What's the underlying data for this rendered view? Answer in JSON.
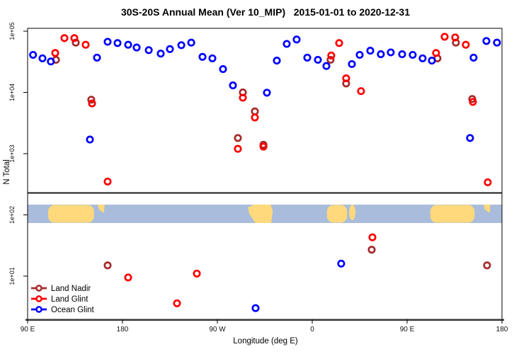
{
  "title": "30S-20S Annual Mean (Ver 10_MIP)   2015-01-01 to 2020-12-31",
  "chart_data": {
    "type": "scatter",
    "title": "30S-20S Annual Mean (Ver 10_MIP)   2015-01-01 to 2020-12-31",
    "xlabel": "Longitude (deg E)",
    "ylabel": "N Total",
    "grid": false,
    "legend_position": "bottom-left-inside",
    "x_axis": {
      "min": 90,
      "max": 540,
      "ticks": [
        {
          "lon": 90,
          "label": "90 E"
        },
        {
          "lon": 180,
          "label": "180"
        },
        {
          "lon": 270,
          "label": "90 W"
        },
        {
          "lon": 360,
          "label": "0"
        },
        {
          "lon": 450,
          "label": "90 E"
        },
        {
          "lon": 540,
          "label": "180"
        }
      ]
    },
    "y_axis": {
      "scale": "log",
      "ylim": [
        2,
        110000
      ],
      "ticks": [
        {
          "value": 100000,
          "label": "1e+05"
        },
        {
          "value": 10000,
          "label": "1e+04"
        },
        {
          "value": 1000,
          "label": "1e+03"
        },
        {
          "value": 100,
          "label": "1e+02"
        },
        {
          "value": 10,
          "label": "1e+01"
        }
      ]
    },
    "legend": [
      "Land Nadir",
      "Land Glint",
      "Ocean Glint"
    ],
    "series": [
      {
        "name": "Land Nadir",
        "color": "#a52a2a",
        "points": [
          {
            "lon": 116.9,
            "v": 34000
          },
          {
            "lon": 135.7,
            "v": 65000
          },
          {
            "lon": 150.4,
            "v": 7600
          },
          {
            "lon": 289.5,
            "v": 1800
          },
          {
            "lon": 294.2,
            "v": 10000
          },
          {
            "lon": 305.6,
            "v": 4900
          },
          {
            "lon": 313.7,
            "v": 1400
          },
          {
            "lon": 377.4,
            "v": 34000
          },
          {
            "lon": 392.2,
            "v": 14000
          },
          {
            "lon": 478.8,
            "v": 36000
          },
          {
            "lon": 496.3,
            "v": 65000
          },
          {
            "lon": 511.8,
            "v": 7800
          },
          {
            "lon": 165.9,
            "v": 15
          },
          {
            "lon": 416.4,
            "v": 27
          },
          {
            "lon": 525.8,
            "v": 15
          }
        ]
      },
      {
        "name": "Land Glint",
        "color": "#ff0000",
        "points": [
          {
            "lon": 116.2,
            "v": 44000
          },
          {
            "lon": 124.9,
            "v": 77000
          },
          {
            "lon": 134.3,
            "v": 77000
          },
          {
            "lon": 145.1,
            "v": 60000
          },
          {
            "lon": 151.1,
            "v": 6600
          },
          {
            "lon": 165.9,
            "v": 350
          },
          {
            "lon": 289.5,
            "v": 1200
          },
          {
            "lon": 294.2,
            "v": 8200
          },
          {
            "lon": 305.6,
            "v": 3900
          },
          {
            "lon": 313.7,
            "v": 1300
          },
          {
            "lon": 378.1,
            "v": 40000
          },
          {
            "lon": 385.5,
            "v": 64000
          },
          {
            "lon": 392.2,
            "v": 17000
          },
          {
            "lon": 406.3,
            "v": 10500
          },
          {
            "lon": 477.5,
            "v": 44000
          },
          {
            "lon": 485.6,
            "v": 81000
          },
          {
            "lon": 495.6,
            "v": 79000
          },
          {
            "lon": 505.7,
            "v": 60000
          },
          {
            "lon": 512.4,
            "v": 7000
          },
          {
            "lon": 526.5,
            "v": 340
          },
          {
            "lon": 185.4,
            "v": 9.5
          },
          {
            "lon": 231.7,
            "v": 3.6
          },
          {
            "lon": 250.5,
            "v": 11
          },
          {
            "lon": 417.1,
            "v": 43
          }
        ]
      },
      {
        "name": "Ocean Glint",
        "color": "#0000ff",
        "points": [
          {
            "lon": 95.2,
            "v": 41000
          },
          {
            "lon": 104.1,
            "v": 36000
          },
          {
            "lon": 112.0,
            "v": 32000
          },
          {
            "lon": 149.1,
            "v": 1700
          },
          {
            "lon": 155.8,
            "v": 37000
          },
          {
            "lon": 165.9,
            "v": 67000
          },
          {
            "lon": 175.3,
            "v": 64000
          },
          {
            "lon": 185.4,
            "v": 60000
          },
          {
            "lon": 193.4,
            "v": 54000
          },
          {
            "lon": 204.9,
            "v": 49000
          },
          {
            "lon": 216.3,
            "v": 43000
          },
          {
            "lon": 225.0,
            "v": 51000
          },
          {
            "lon": 235.8,
            "v": 59000
          },
          {
            "lon": 245.2,
            "v": 65000
          },
          {
            "lon": 255.9,
            "v": 38000
          },
          {
            "lon": 265.3,
            "v": 36000
          },
          {
            "lon": 275.4,
            "v": 24000
          },
          {
            "lon": 284.8,
            "v": 13000
          },
          {
            "lon": 317.0,
            "v": 9900
          },
          {
            "lon": 326.4,
            "v": 33000
          },
          {
            "lon": 335.8,
            "v": 62000
          },
          {
            "lon": 345.2,
            "v": 73000
          },
          {
            "lon": 355.3,
            "v": 37000
          },
          {
            "lon": 365.4,
            "v": 34000
          },
          {
            "lon": 373.4,
            "v": 27000
          },
          {
            "lon": 397.6,
            "v": 29000
          },
          {
            "lon": 405.0,
            "v": 41000
          },
          {
            "lon": 415.1,
            "v": 48000
          },
          {
            "lon": 425.1,
            "v": 42000
          },
          {
            "lon": 434.5,
            "v": 45000
          },
          {
            "lon": 445.3,
            "v": 42000
          },
          {
            "lon": 455.3,
            "v": 41000
          },
          {
            "lon": 464.7,
            "v": 36000
          },
          {
            "lon": 473.5,
            "v": 33000
          },
          {
            "lon": 509.7,
            "v": 1800
          },
          {
            "lon": 513.1,
            "v": 37000
          },
          {
            "lon": 525.2,
            "v": 69000
          },
          {
            "lon": 535.2,
            "v": 65000
          },
          {
            "lon": 306.3,
            "v": 3.0
          },
          {
            "lon": 387.5,
            "v": 16
          }
        ]
      }
    ],
    "map_strip": {
      "description": "30S-20S latitude band world map, longitude 90E wrapping to 180",
      "ocean_color": "#a9bcdb",
      "land_color": "#ffd97c",
      "v_center": 100,
      "segments": [
        {
          "name": "australia",
          "from": 109.5,
          "to": 153,
          "shape": "blob"
        },
        {
          "name": "new-caledonia",
          "from": 156.5,
          "to": 163,
          "shape": "sliver"
        },
        {
          "name": "south-america",
          "from": 299,
          "to": 322.5,
          "shape": "slant"
        },
        {
          "name": "southern-africa",
          "from": 374,
          "to": 393,
          "shape": "blob"
        },
        {
          "name": "madagascar",
          "from": 395,
          "to": 401,
          "shape": "island"
        },
        {
          "name": "australia-wrap",
          "from": 472,
          "to": 514,
          "shape": "blob"
        },
        {
          "name": "new-caledonia-wrap",
          "from": 522.5,
          "to": 529,
          "shape": "sliver"
        }
      ]
    }
  }
}
